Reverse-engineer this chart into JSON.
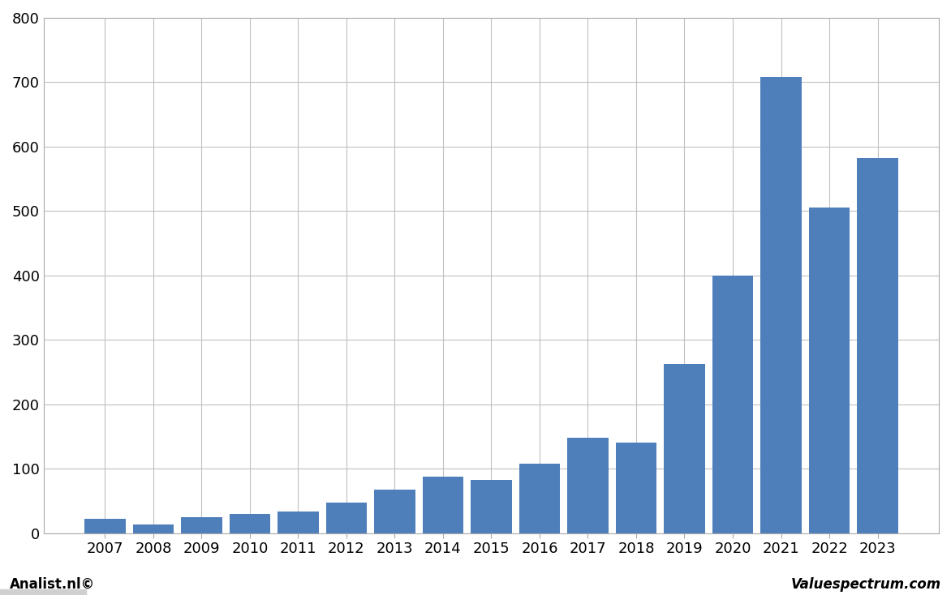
{
  "categories": [
    "2007",
    "2008",
    "2009",
    "2010",
    "2011",
    "2012",
    "2013",
    "2014",
    "2015",
    "2016",
    "2017",
    "2018",
    "2019",
    "2020",
    "2021",
    "2022",
    "2023"
  ],
  "values": [
    22,
    13,
    25,
    30,
    33,
    47,
    67,
    88,
    83,
    108,
    148,
    140,
    263,
    400,
    708,
    505,
    582
  ],
  "bar_color": "#4f7fba",
  "background_color": "#ffffff",
  "plot_bg_color": "#ffffff",
  "grid_color": "#c0c0c0",
  "border_color": "#aaaaaa",
  "ylim": [
    0,
    800
  ],
  "yticks": [
    0,
    100,
    200,
    300,
    400,
    500,
    600,
    700,
    800
  ],
  "tick_fontsize": 13,
  "bar_width": 0.85,
  "footer_left": "Analist.nl©",
  "footer_right": "Valuespectrum.com",
  "footer_fontsize": 12,
  "footer_bg": "#d0d0d0"
}
